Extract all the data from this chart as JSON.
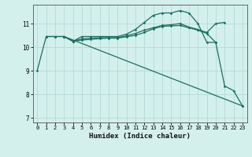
{
  "bg_color": "#d4f0ec",
  "grid_color": "#b8ddd9",
  "line_color": "#1a6e60",
  "xlabel": "Humidex (Indice chaleur)",
  "xlim": [
    -0.5,
    23.5
  ],
  "ylim": [
    6.8,
    11.8
  ],
  "yticks": [
    7,
    8,
    9,
    10,
    11
  ],
  "xticks": [
    0,
    1,
    2,
    3,
    4,
    5,
    6,
    7,
    8,
    9,
    10,
    11,
    12,
    13,
    14,
    15,
    16,
    17,
    18,
    19,
    20,
    21,
    22,
    23
  ],
  "line1_x": [
    0,
    1,
    2,
    3,
    4,
    5,
    6,
    7,
    8,
    9,
    10,
    11,
    12,
    13,
    14,
    15,
    16,
    17,
    18,
    19,
    20,
    21,
    22,
    23
  ],
  "line1_y": [
    9.0,
    10.45,
    10.45,
    10.45,
    10.25,
    10.45,
    10.45,
    10.45,
    10.45,
    10.45,
    10.55,
    10.75,
    11.05,
    11.35,
    11.45,
    11.45,
    11.55,
    11.45,
    11.0,
    10.2,
    10.2,
    8.35,
    8.15,
    7.5
  ],
  "line2_x": [
    3,
    4,
    5,
    6,
    7,
    8,
    9,
    10,
    11,
    12,
    13,
    14,
    15,
    16,
    17,
    18,
    19,
    20,
    21
  ],
  "line2_y": [
    10.45,
    10.25,
    10.35,
    10.38,
    10.4,
    10.4,
    10.4,
    10.48,
    10.58,
    10.72,
    10.82,
    10.92,
    10.95,
    11.0,
    10.85,
    10.75,
    10.62,
    11.0,
    11.05
  ],
  "line3_x": [
    1,
    2,
    3,
    4,
    5,
    6,
    7,
    8,
    9,
    10,
    11,
    12,
    13,
    14,
    15,
    16,
    17,
    18,
    19,
    20
  ],
  "line3_y": [
    10.45,
    10.45,
    10.45,
    10.25,
    10.3,
    10.33,
    10.36,
    10.38,
    10.38,
    10.44,
    10.5,
    10.62,
    10.78,
    10.88,
    10.9,
    10.92,
    10.82,
    10.72,
    10.58,
    10.2
  ],
  "line4_x": [
    3,
    23
  ],
  "line4_y": [
    10.45,
    7.5
  ]
}
